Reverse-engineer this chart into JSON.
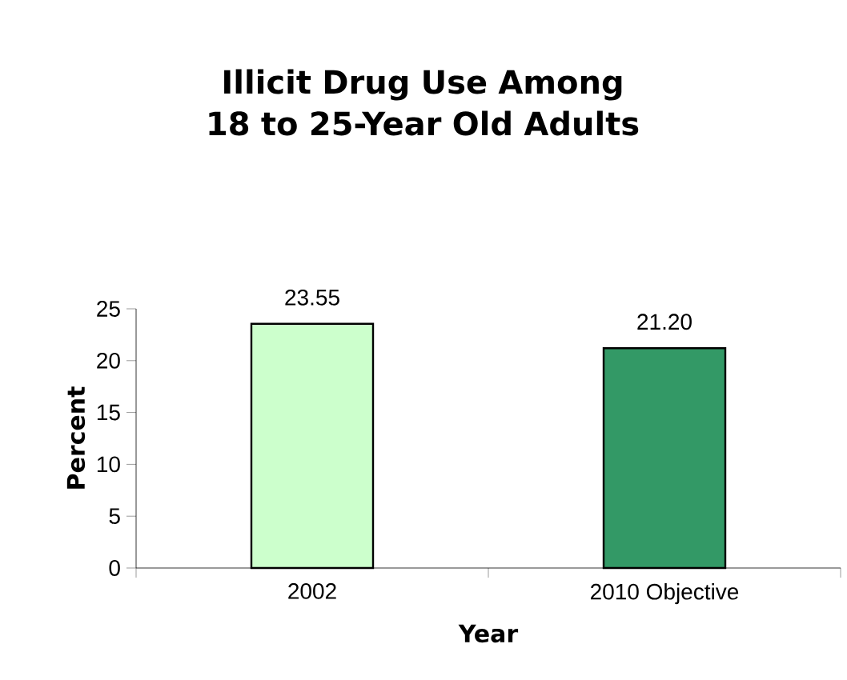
{
  "chart_data": {
    "type": "bar",
    "title": "Illicit Drug Use Among 18 to 25-Year Old Adults",
    "xlabel": "Year",
    "ylabel": "Percent",
    "categories": [
      "2002",
      "2010 Objective"
    ],
    "values": [
      23.55,
      21.2
    ],
    "value_labels": [
      "23.55",
      "21.20"
    ],
    "colors": [
      "#ccffcc",
      "#339966"
    ],
    "ylim": [
      0,
      25
    ],
    "yticks": [
      0,
      5,
      10,
      15,
      20,
      25
    ]
  }
}
